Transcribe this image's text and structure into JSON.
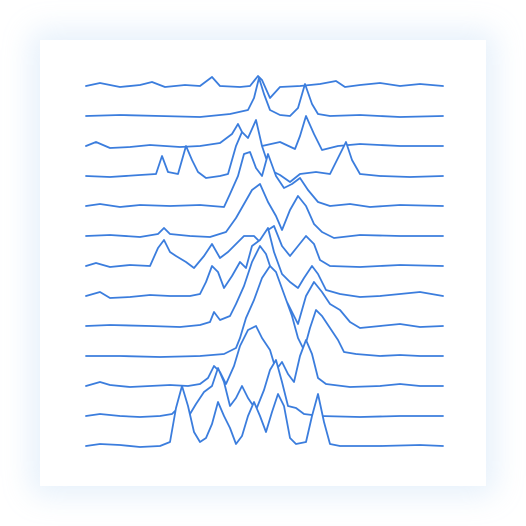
{
  "artwork": {
    "kind": "ridgeline-illustration",
    "line_color": "#3b7ddd",
    "background_color": "#ffffff",
    "glow_color": "#aacdf0",
    "ridge_count": 13
  }
}
